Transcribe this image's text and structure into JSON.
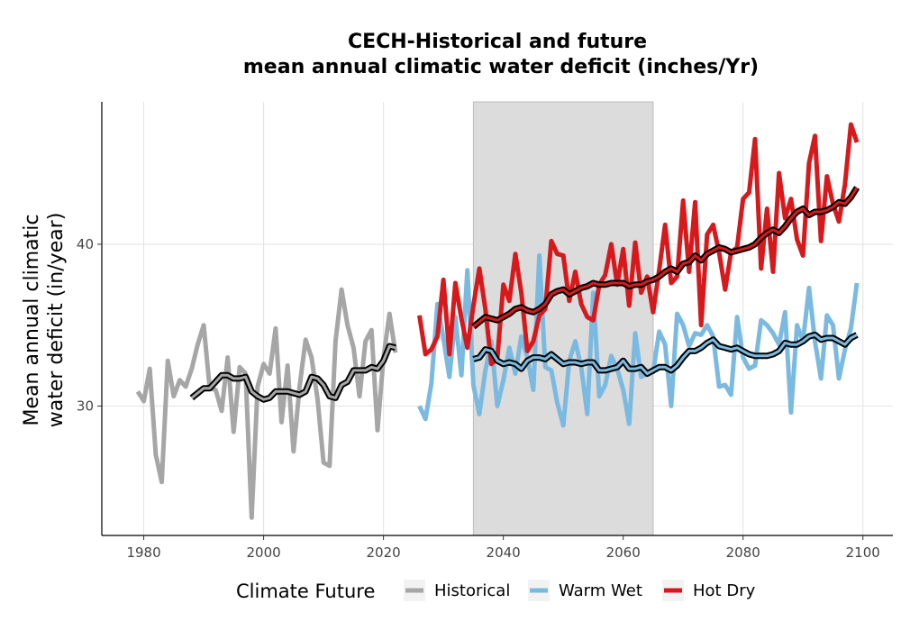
{
  "chart_data": {
    "type": "line",
    "title_line1": "CECH-Historical and future",
    "title_line2": "mean annual climatic water deficit (inches/Yr)",
    "xlabel": "",
    "ylabel_line1": "Mean annual climatic",
    "ylabel_line2": "water deficit (in/year)",
    "xlim": [
      1973,
      2105
    ],
    "ylim": [
      22.0,
      48.8
    ],
    "x_ticks": [
      1980,
      2000,
      2020,
      2040,
      2060,
      2080,
      2100
    ],
    "x_tick_labels": [
      "1980",
      "2000",
      "2020",
      "2040",
      "2060",
      "2080",
      "2100"
    ],
    "y_ticks": [
      30,
      40
    ],
    "y_tick_labels": [
      "30",
      "40"
    ],
    "grid": true,
    "shaded_period": [
      2035,
      2065
    ],
    "legend": {
      "title": "Climate Future",
      "position": "bottom",
      "entries": [
        "Historical",
        "Warm Wet",
        "Hot Dry"
      ]
    },
    "colors": {
      "Historical": "#a6a6a6",
      "Warm Wet": "#7bbae0",
      "Hot Dry": "#d7191c",
      "smooth": "#000000",
      "shade": "#dcdcdc",
      "grid": "#e2e2e2"
    },
    "series": [
      {
        "name": "Historical",
        "x": [
          1979,
          1980,
          1981,
          1982,
          1983,
          1984,
          1985,
          1986,
          1987,
          1988,
          1989,
          1990,
          1991,
          1992,
          1993,
          1994,
          1995,
          1996,
          1997,
          1998,
          1999,
          2000,
          2001,
          2002,
          2003,
          2004,
          2005,
          2006,
          2007,
          2008,
          2009,
          2010,
          2011,
          2012,
          2013,
          2014,
          2015,
          2016,
          2017,
          2018,
          2019,
          2020,
          2021,
          2022
        ],
        "y": [
          30.9,
          30.3,
          32.3,
          27.0,
          25.3,
          32.8,
          30.6,
          31.6,
          31.2,
          32.3,
          33.8,
          35.0,
          31.1,
          31.0,
          29.7,
          33.0,
          28.4,
          32.4,
          32.0,
          23.1,
          31.2,
          32.6,
          32.0,
          34.8,
          29.0,
          32.5,
          27.2,
          31.2,
          34.1,
          33.0,
          30.4,
          26.5,
          26.3,
          34.0,
          37.2,
          35.0,
          33.6,
          30.6,
          34.0,
          34.7,
          28.5,
          33.0,
          35.7,
          33.3
        ]
      },
      {
        "name": "Warm Wet",
        "x": [
          2026,
          2027,
          2028,
          2029,
          2030,
          2031,
          2032,
          2033,
          2034,
          2035,
          2036,
          2037,
          2038,
          2039,
          2040,
          2041,
          2042,
          2043,
          2044,
          2045,
          2046,
          2047,
          2048,
          2049,
          2050,
          2051,
          2052,
          2053,
          2054,
          2055,
          2056,
          2057,
          2058,
          2059,
          2060,
          2061,
          2062,
          2063,
          2064,
          2065,
          2066,
          2067,
          2068,
          2069,
          2070,
          2071,
          2072,
          2073,
          2074,
          2075,
          2076,
          2077,
          2078,
          2079,
          2080,
          2081,
          2082,
          2083,
          2084,
          2085,
          2086,
          2087,
          2088,
          2089,
          2090,
          2091,
          2092,
          2093,
          2094,
          2095,
          2096,
          2097,
          2098,
          2099
        ],
        "y": [
          30.0,
          29.2,
          31.4,
          36.3,
          34.2,
          31.8,
          35.5,
          31.9,
          38.4,
          31.3,
          29.5,
          32.2,
          34.0,
          30.0,
          31.6,
          33.6,
          32.0,
          34.3,
          33.0,
          31.0,
          39.3,
          32.4,
          32.2,
          30.2,
          28.8,
          32.8,
          34.0,
          32.4,
          29.5,
          37.0,
          30.6,
          31.3,
          33.1,
          32.3,
          31.0,
          28.9,
          34.5,
          31.8,
          32.0,
          32.1,
          34.6,
          33.8,
          30.0,
          35.7,
          35.0,
          33.7,
          34.5,
          34.4,
          35.0,
          34.3,
          31.2,
          31.3,
          30.7,
          35.5,
          33.0,
          32.3,
          32.5,
          35.3,
          35.0,
          34.5,
          33.8,
          35.8,
          29.6,
          35.0,
          34.0,
          37.3,
          34.0,
          31.7,
          35.6,
          35.0,
          31.7,
          33.5,
          34.8,
          37.6
        ]
      },
      {
        "name": "Hot Dry",
        "x": [
          2026,
          2027,
          2028,
          2029,
          2030,
          2031,
          2032,
          2033,
          2034,
          2035,
          2036,
          2037,
          2038,
          2039,
          2040,
          2041,
          2042,
          2043,
          2044,
          2045,
          2046,
          2047,
          2048,
          2049,
          2050,
          2051,
          2052,
          2053,
          2054,
          2055,
          2056,
          2057,
          2058,
          2059,
          2060,
          2061,
          2062,
          2063,
          2064,
          2065,
          2066,
          2067,
          2068,
          2069,
          2070,
          2071,
          2072,
          2073,
          2074,
          2075,
          2076,
          2077,
          2078,
          2079,
          2080,
          2081,
          2082,
          2083,
          2084,
          2085,
          2086,
          2087,
          2088,
          2089,
          2090,
          2091,
          2092,
          2093,
          2094,
          2095,
          2096,
          2097,
          2098,
          2099
        ],
        "y": [
          35.6,
          33.2,
          33.5,
          34.3,
          37.8,
          33.2,
          37.6,
          35.4,
          33.6,
          36.2,
          38.5,
          36.0,
          32.6,
          33.0,
          37.5,
          36.5,
          39.4,
          37.0,
          33.4,
          34.0,
          35.6,
          36.0,
          40.2,
          39.4,
          39.3,
          36.5,
          38.3,
          36.3,
          35.5,
          35.3,
          37.5,
          38.1,
          40.0,
          37.5,
          39.7,
          36.2,
          40.1,
          37.0,
          38.0,
          35.8,
          38.4,
          41.2,
          37.6,
          38.0,
          42.7,
          38.3,
          42.6,
          35.0,
          40.6,
          41.2,
          39.5,
          37.2,
          39.5,
          39.8,
          42.8,
          43.2,
          46.5,
          38.5,
          42.2,
          38.3,
          44.4,
          41.6,
          42.8,
          40.3,
          39.3,
          45.0,
          46.7,
          40.2,
          44.2,
          42.5,
          41.4,
          43.7,
          47.4,
          46.3
        ]
      },
      {
        "name": "Historical smoothed",
        "x": [
          1988,
          1989,
          1990,
          1991,
          1992,
          1993,
          1994,
          1995,
          1996,
          1997,
          1998,
          1999,
          2000,
          2001,
          2002,
          2003,
          2004,
          2005,
          2006,
          2007,
          2008,
          2009,
          2010,
          2011,
          2012,
          2013,
          2014,
          2015,
          2016,
          2017,
          2018,
          2019,
          2020,
          2021,
          2022
        ],
        "y": [
          30.5,
          30.8,
          31.1,
          31.1,
          31.5,
          31.9,
          31.9,
          31.7,
          31.7,
          31.8,
          30.9,
          30.6,
          30.4,
          30.5,
          30.9,
          30.9,
          30.9,
          30.8,
          30.7,
          30.9,
          31.8,
          31.7,
          31.3,
          30.6,
          30.5,
          31.3,
          31.5,
          32.2,
          32.2,
          32.2,
          32.4,
          32.3,
          32.8,
          33.7,
          33.6
        ]
      },
      {
        "name": "Warm Wet smoothed",
        "x": [
          2035,
          2036,
          2037,
          2038,
          2039,
          2040,
          2041,
          2042,
          2043,
          2044,
          2045,
          2046,
          2047,
          2048,
          2049,
          2050,
          2051,
          2052,
          2053,
          2054,
          2055,
          2056,
          2057,
          2058,
          2059,
          2060,
          2061,
          2062,
          2063,
          2064,
          2065,
          2066,
          2067,
          2068,
          2069,
          2070,
          2071,
          2072,
          2073,
          2074,
          2075,
          2076,
          2077,
          2078,
          2079,
          2080,
          2081,
          2082,
          2083,
          2084,
          2085,
          2086,
          2087,
          2088,
          2089,
          2090,
          2091,
          2092,
          2093,
          2094,
          2095,
          2096,
          2097,
          2098,
          2099
        ],
        "y": [
          32.9,
          33.0,
          33.5,
          33.4,
          32.8,
          32.6,
          32.7,
          32.6,
          32.3,
          32.8,
          33.0,
          33.0,
          32.9,
          33.2,
          32.9,
          32.6,
          32.7,
          32.7,
          32.6,
          32.7,
          32.7,
          32.2,
          32.2,
          32.3,
          32.4,
          32.8,
          32.3,
          32.3,
          32.4,
          32.0,
          32.2,
          32.4,
          32.4,
          32.2,
          32.5,
          33.0,
          33.4,
          33.4,
          33.6,
          33.9,
          34.1,
          33.7,
          33.6,
          33.5,
          33.6,
          33.4,
          33.2,
          33.1,
          33.1,
          33.1,
          33.2,
          33.4,
          33.9,
          33.8,
          33.8,
          34.0,
          34.3,
          34.4,
          34.1,
          34.2,
          34.2,
          34.0,
          33.8,
          34.2,
          34.4
        ]
      },
      {
        "name": "Hot Dry smoothed",
        "x": [
          2035,
          2036,
          2037,
          2038,
          2039,
          2040,
          2041,
          2042,
          2043,
          2044,
          2045,
          2046,
          2047,
          2048,
          2049,
          2050,
          2051,
          2052,
          2053,
          2054,
          2055,
          2056,
          2057,
          2058,
          2059,
          2060,
          2061,
          2062,
          2063,
          2064,
          2065,
          2066,
          2067,
          2068,
          2069,
          2070,
          2071,
          2072,
          2073,
          2074,
          2075,
          2076,
          2077,
          2078,
          2079,
          2080,
          2081,
          2082,
          2083,
          2084,
          2085,
          2086,
          2087,
          2088,
          2089,
          2090,
          2091,
          2092,
          2093,
          2094,
          2095,
          2096,
          2097,
          2098,
          2099
        ],
        "y": [
          34.9,
          35.2,
          35.5,
          35.4,
          35.3,
          35.5,
          35.7,
          36.0,
          36.1,
          35.9,
          35.8,
          36.0,
          36.3,
          36.9,
          37.1,
          37.2,
          36.9,
          37.1,
          37.3,
          37.4,
          37.6,
          37.5,
          37.5,
          37.6,
          37.6,
          37.6,
          37.4,
          37.5,
          37.5,
          37.7,
          37.8,
          38.0,
          38.3,
          38.5,
          38.3,
          38.8,
          38.9,
          39.3,
          39.0,
          39.4,
          39.6,
          39.8,
          39.7,
          39.5,
          39.6,
          39.7,
          39.8,
          40.0,
          40.4,
          40.7,
          40.9,
          40.7,
          41.1,
          41.6,
          42.0,
          42.2,
          41.8,
          42.0,
          42.0,
          42.1,
          42.3,
          42.6,
          42.5,
          42.9,
          43.5
        ]
      }
    ]
  }
}
